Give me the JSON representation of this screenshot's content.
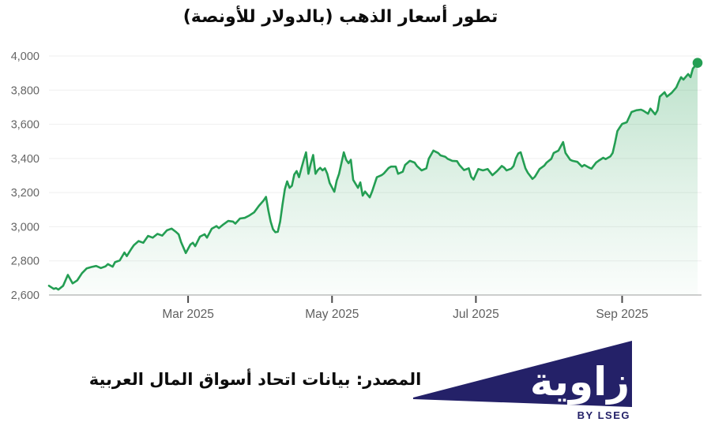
{
  "title": "تطور أسعار الذهب (بالدولار للأونصة)",
  "footer": {
    "source_text": "المصدر: بيانات اتحاد أسواق المال العربية",
    "logo": {
      "brand": "زاوية",
      "byline": "BY LSEG",
      "navy": "#242168",
      "text_white": "#ffffff"
    }
  },
  "chart_data": {
    "type": "area",
    "title": "تطور أسعار الذهب (بالدولار للأونصة)",
    "ylim": [
      2600,
      4000
    ],
    "y_ticks": [
      2600,
      2800,
      3000,
      3200,
      3400,
      3600,
      3800,
      4000
    ],
    "y_tick_labels": [
      "2,600",
      "2,800",
      "3,000",
      "3,200",
      "3,400",
      "3,600",
      "3,800",
      "4,000"
    ],
    "x_tick_labels": [
      "Mar 2025",
      "May 2025",
      "Jul 2025",
      "Sep 2025"
    ],
    "x_tick_days": [
      59,
      120,
      181,
      243
    ],
    "x_domain_days": [
      0,
      276
    ],
    "grid": true,
    "legend": "none",
    "line_color": "#249e53",
    "marker_color": "#249e53",
    "fill_color": "#249e53",
    "grid_color": "#efefef",
    "axis_color": "#b0b0b0",
    "tick_color": "#4a4a4a",
    "label_color": "#666666",
    "last_point_marker": true,
    "series": [
      {
        "name": "gold_price_usd_per_ounce",
        "points": [
          [
            0,
            2654
          ],
          [
            2,
            2636
          ],
          [
            3,
            2640
          ],
          [
            4,
            2632
          ],
          [
            6,
            2654
          ],
          [
            8,
            2718
          ],
          [
            10,
            2668
          ],
          [
            12,
            2686
          ],
          [
            14,
            2728
          ],
          [
            16,
            2756
          ],
          [
            18,
            2764
          ],
          [
            20,
            2770
          ],
          [
            22,
            2758
          ],
          [
            24,
            2768
          ],
          [
            25,
            2781
          ],
          [
            27,
            2766
          ],
          [
            28,
            2792
          ],
          [
            30,
            2803
          ],
          [
            32,
            2849
          ],
          [
            33,
            2828
          ],
          [
            35,
            2872
          ],
          [
            36,
            2892
          ],
          [
            38,
            2916
          ],
          [
            40,
            2906
          ],
          [
            42,
            2946
          ],
          [
            44,
            2936
          ],
          [
            46,
            2958
          ],
          [
            48,
            2948
          ],
          [
            50,
            2979
          ],
          [
            52,
            2989
          ],
          [
            54,
            2968
          ],
          [
            55,
            2955
          ],
          [
            56,
            2910
          ],
          [
            58,
            2846
          ],
          [
            60,
            2896
          ],
          [
            61,
            2906
          ],
          [
            62,
            2886
          ],
          [
            64,
            2942
          ],
          [
            66,
            2956
          ],
          [
            67,
            2936
          ],
          [
            69,
            2988
          ],
          [
            71,
            3004
          ],
          [
            72,
            2992
          ],
          [
            74,
            3014
          ],
          [
            76,
            3034
          ],
          [
            78,
            3030
          ],
          [
            79,
            3018
          ],
          [
            81,
            3048
          ],
          [
            83,
            3052
          ],
          [
            85,
            3066
          ],
          [
            87,
            3084
          ],
          [
            89,
            3122
          ],
          [
            91,
            3154
          ],
          [
            92,
            3175
          ],
          [
            93,
            3095
          ],
          [
            94,
            3030
          ],
          [
            95,
            2985
          ],
          [
            96,
            2968
          ],
          [
            97,
            2970
          ],
          [
            98,
            3030
          ],
          [
            99,
            3130
          ],
          [
            100,
            3220
          ],
          [
            101,
            3266
          ],
          [
            102,
            3228
          ],
          [
            103,
            3240
          ],
          [
            104,
            3306
          ],
          [
            105,
            3326
          ],
          [
            106,
            3290
          ],
          [
            107,
            3340
          ],
          [
            108,
            3390
          ],
          [
            109,
            3436
          ],
          [
            110,
            3310
          ],
          [
            111,
            3370
          ],
          [
            112,
            3420
          ],
          [
            113,
            3310
          ],
          [
            114,
            3332
          ],
          [
            115,
            3345
          ],
          [
            116,
            3330
          ],
          [
            117,
            3342
          ],
          [
            118,
            3310
          ],
          [
            119,
            3256
          ],
          [
            120,
            3230
          ],
          [
            121,
            3205
          ],
          [
            122,
            3270
          ],
          [
            123,
            3310
          ],
          [
            125,
            3436
          ],
          [
            126,
            3392
          ],
          [
            127,
            3372
          ],
          [
            128,
            3392
          ],
          [
            129,
            3274
          ],
          [
            131,
            3228
          ],
          [
            132,
            3260
          ],
          [
            133,
            3182
          ],
          [
            134,
            3206
          ],
          [
            136,
            3172
          ],
          [
            137,
            3206
          ],
          [
            139,
            3290
          ],
          [
            141,
            3302
          ],
          [
            142,
            3312
          ],
          [
            144,
            3344
          ],
          [
            145,
            3352
          ],
          [
            147,
            3352
          ],
          [
            148,
            3310
          ],
          [
            150,
            3322
          ],
          [
            151,
            3362
          ],
          [
            153,
            3386
          ],
          [
            155,
            3376
          ],
          [
            156,
            3356
          ],
          [
            158,
            3330
          ],
          [
            160,
            3342
          ],
          [
            161,
            3398
          ],
          [
            163,
            3446
          ],
          [
            165,
            3432
          ],
          [
            166,
            3418
          ],
          [
            168,
            3410
          ],
          [
            169,
            3398
          ],
          [
            171,
            3386
          ],
          [
            173,
            3384
          ],
          [
            174,
            3362
          ],
          [
            176,
            3332
          ],
          [
            178,
            3342
          ],
          [
            179,
            3292
          ],
          [
            180,
            3276
          ],
          [
            182,
            3338
          ],
          [
            184,
            3330
          ],
          [
            186,
            3338
          ],
          [
            187,
            3320
          ],
          [
            188,
            3302
          ],
          [
            190,
            3326
          ],
          [
            192,
            3356
          ],
          [
            193,
            3346
          ],
          [
            194,
            3330
          ],
          [
            196,
            3340
          ],
          [
            197,
            3356
          ],
          [
            198,
            3402
          ],
          [
            199,
            3430
          ],
          [
            200,
            3436
          ],
          [
            202,
            3342
          ],
          [
            203,
            3316
          ],
          [
            205,
            3280
          ],
          [
            206,
            3292
          ],
          [
            208,
            3338
          ],
          [
            210,
            3358
          ],
          [
            211,
            3376
          ],
          [
            213,
            3398
          ],
          [
            214,
            3432
          ],
          [
            216,
            3446
          ],
          [
            218,
            3496
          ],
          [
            219,
            3432
          ],
          [
            221,
            3392
          ],
          [
            222,
            3386
          ],
          [
            224,
            3380
          ],
          [
            226,
            3352
          ],
          [
            227,
            3362
          ],
          [
            229,
            3346
          ],
          [
            230,
            3340
          ],
          [
            232,
            3376
          ],
          [
            233,
            3386
          ],
          [
            235,
            3404
          ],
          [
            236,
            3396
          ],
          [
            238,
            3412
          ],
          [
            239,
            3432
          ],
          [
            240,
            3492
          ],
          [
            241,
            3560
          ],
          [
            242,
            3582
          ],
          [
            243,
            3602
          ],
          [
            245,
            3612
          ],
          [
            246,
            3642
          ],
          [
            247,
            3672
          ],
          [
            249,
            3682
          ],
          [
            251,
            3686
          ],
          [
            252,
            3680
          ],
          [
            254,
            3662
          ],
          [
            255,
            3692
          ],
          [
            257,
            3658
          ],
          [
            258,
            3682
          ],
          [
            259,
            3762
          ],
          [
            261,
            3788
          ],
          [
            262,
            3762
          ],
          [
            264,
            3784
          ],
          [
            266,
            3816
          ],
          [
            267,
            3848
          ],
          [
            268,
            3876
          ],
          [
            269,
            3862
          ],
          [
            271,
            3894
          ],
          [
            272,
            3876
          ],
          [
            273,
            3926
          ],
          [
            275,
            3960
          ]
        ]
      }
    ]
  }
}
